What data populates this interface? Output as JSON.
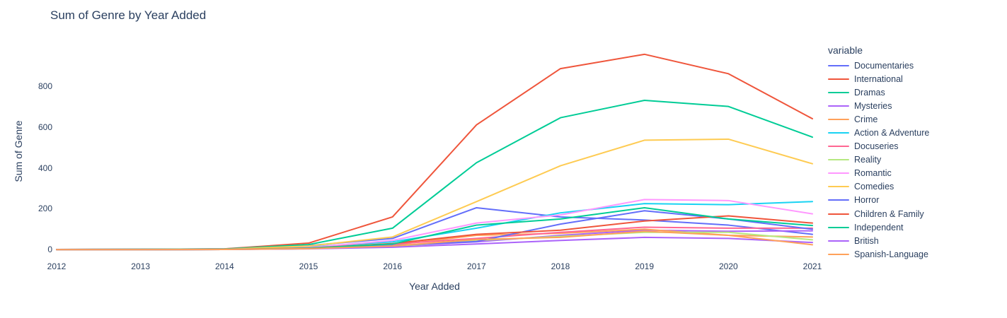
{
  "title": "Sum of Genre by Year Added",
  "x_axis": {
    "label": "Year Added",
    "ticks": [
      2012,
      2013,
      2014,
      2015,
      2016,
      2017,
      2018,
      2019,
      2020,
      2021
    ]
  },
  "y_axis": {
    "label": "Sum of Genre",
    "ticks": [
      0,
      200,
      400,
      600,
      800
    ]
  },
  "legend": {
    "title": "variable"
  },
  "colors": {
    "text": "#2a3f5f",
    "background": "#ffffff",
    "palette": [
      "#636EFA",
      "#EF553B",
      "#00CC96",
      "#AB63FA",
      "#FFA15A",
      "#19D3F3",
      "#FF6692",
      "#B6E880",
      "#FF97FF",
      "#FECB52"
    ]
  },
  "chart_data": {
    "type": "line",
    "title": "Sum of Genre by Year Added",
    "xlabel": "Year Added",
    "ylabel": "Sum of Genre",
    "x": [
      2012,
      2013,
      2014,
      2015,
      2016,
      2017,
      2018,
      2019,
      2020,
      2021
    ],
    "ylim": [
      0,
      980
    ],
    "grid": false,
    "legend_position": "right",
    "legend_title": "variable",
    "series": [
      {
        "name": "Documentaries",
        "color": "#636EFA",
        "values": [
          1,
          2,
          4,
          20,
          55,
          205,
          160,
          145,
          120,
          75
        ]
      },
      {
        "name": "International",
        "color": "#EF553B",
        "values": [
          1,
          2,
          4,
          32,
          160,
          610,
          885,
          955,
          860,
          640
        ]
      },
      {
        "name": "Dramas",
        "color": "#00CC96",
        "values": [
          1,
          2,
          3,
          25,
          105,
          425,
          645,
          730,
          700,
          550
        ]
      },
      {
        "name": "Mysteries",
        "color": "#AB63FA",
        "values": [
          0,
          0,
          1,
          6,
          18,
          38,
          70,
          95,
          90,
          92
        ]
      },
      {
        "name": "Crime",
        "color": "#FFA15A",
        "values": [
          0,
          0,
          1,
          8,
          22,
          70,
          80,
          100,
          70,
          62
        ]
      },
      {
        "name": "Action & Adventure",
        "color": "#19D3F3",
        "values": [
          0,
          1,
          2,
          14,
          38,
          105,
          180,
          225,
          220,
          235
        ]
      },
      {
        "name": "Docuseries",
        "color": "#FF6692",
        "values": [
          0,
          0,
          1,
          10,
          28,
          55,
          85,
          110,
          105,
          105
        ]
      },
      {
        "name": "Reality",
        "color": "#B6E880",
        "values": [
          0,
          0,
          1,
          5,
          15,
          45,
          65,
          85,
          85,
          48
        ]
      },
      {
        "name": "Romantic",
        "color": "#FF97FF",
        "values": [
          0,
          0,
          1,
          10,
          45,
          130,
          170,
          245,
          240,
          175
        ]
      },
      {
        "name": "Comedies",
        "color": "#FECB52",
        "values": [
          0,
          1,
          2,
          18,
          62,
          235,
          410,
          535,
          540,
          420
        ]
      },
      {
        "name": "Horror",
        "color": "#636EFA",
        "values": [
          0,
          0,
          1,
          5,
          20,
          40,
          125,
          190,
          150,
          100
        ]
      },
      {
        "name": "Children & Family",
        "color": "#EF553B",
        "values": [
          0,
          0,
          1,
          8,
          30,
          75,
          95,
          140,
          165,
          130
        ]
      },
      {
        "name": "Independent",
        "color": "#00CC96",
        "values": [
          0,
          0,
          1,
          7,
          28,
          120,
          150,
          205,
          150,
          118
        ]
      },
      {
        "name": "British",
        "color": "#AB63FA",
        "values": [
          0,
          0,
          1,
          4,
          12,
          28,
          45,
          60,
          55,
          35
        ]
      },
      {
        "name": "Spanish-Language",
        "color": "#FFA15A",
        "values": [
          0,
          0,
          1,
          5,
          18,
          50,
          60,
          90,
          70,
          24
        ]
      }
    ]
  }
}
